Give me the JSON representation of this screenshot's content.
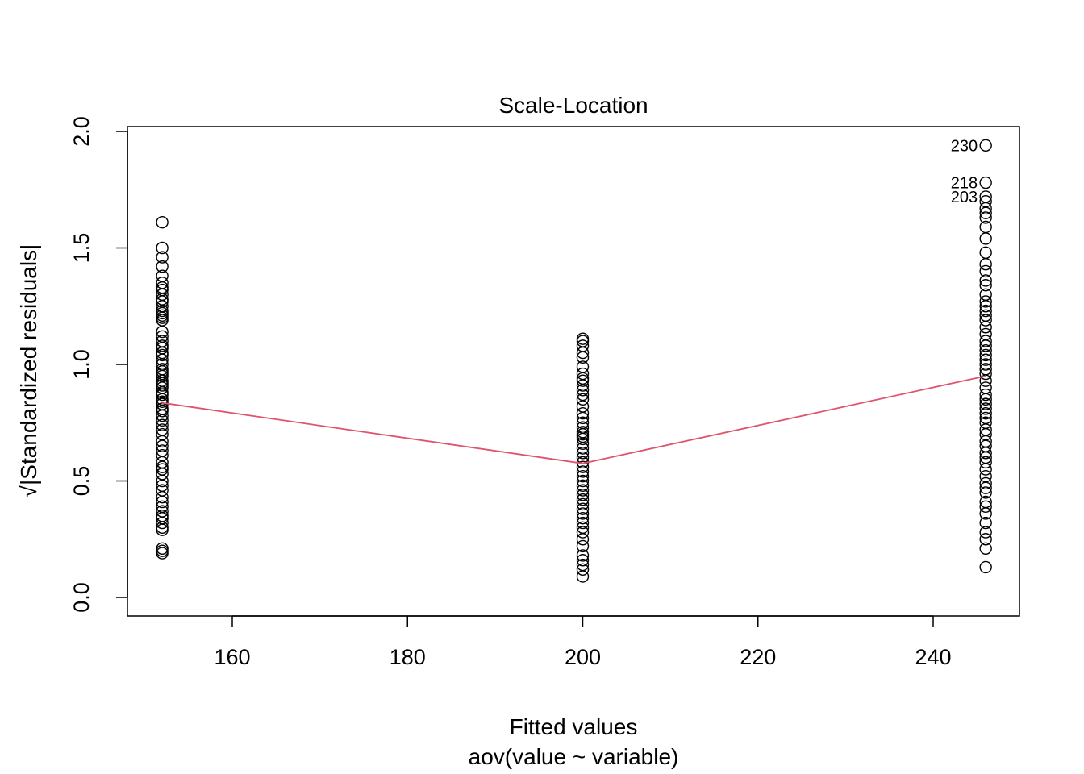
{
  "chart_data": {
    "type": "scatter",
    "title": "Scale-Location",
    "xlabel": "Fitted values",
    "xlabel_sub": "aov(value ~ variable)",
    "ylabel": "√|Standardized residuals|",
    "xlim": [
      148,
      250
    ],
    "ylim": [
      0,
      2
    ],
    "x_ticks": [
      160,
      180,
      200,
      220,
      240
    ],
    "y_ticks": [
      0.0,
      0.5,
      1.0,
      1.5,
      2.0
    ],
    "y_tick_labels": [
      "0.0",
      "0.5",
      "1.0",
      "1.5",
      "2.0"
    ],
    "grid": false,
    "groups": [
      {
        "fitted": 152,
        "values": [
          1.61,
          1.5,
          1.46,
          1.42,
          1.38,
          1.35,
          1.33,
          1.32,
          1.3,
          1.28,
          1.27,
          1.25,
          1.23,
          1.22,
          1.21,
          1.2,
          1.19,
          1.14,
          1.12,
          1.1,
          1.08,
          1.07,
          1.05,
          1.04,
          1.02,
          1.0,
          0.98,
          0.97,
          0.96,
          0.95,
          0.93,
          0.92,
          0.91,
          0.9,
          0.88,
          0.87,
          0.85,
          0.84,
          0.83,
          0.81,
          0.8,
          0.78,
          0.76,
          0.74,
          0.72,
          0.7,
          0.67,
          0.65,
          0.63,
          0.61,
          0.58,
          0.56,
          0.55,
          0.53,
          0.5,
          0.48,
          0.46,
          0.43,
          0.41,
          0.39,
          0.37,
          0.35,
          0.34,
          0.32,
          0.3,
          0.29,
          0.21,
          0.2,
          0.19
        ]
      },
      {
        "fitted": 200,
        "values": [
          1.11,
          1.1,
          1.08,
          1.05,
          1.03,
          0.99,
          0.96,
          0.94,
          0.93,
          0.91,
          0.89,
          0.87,
          0.85,
          0.82,
          0.79,
          0.77,
          0.75,
          0.73,
          0.71,
          0.7,
          0.69,
          0.68,
          0.66,
          0.64,
          0.62,
          0.6,
          0.58,
          0.56,
          0.54,
          0.52,
          0.5,
          0.48,
          0.46,
          0.44,
          0.42,
          0.4,
          0.38,
          0.36,
          0.34,
          0.32,
          0.3,
          0.28,
          0.25,
          0.22,
          0.18,
          0.16,
          0.14,
          0.12,
          0.09
        ]
      },
      {
        "fitted": 246,
        "values": [
          1.94,
          1.78,
          1.72,
          1.7,
          1.67,
          1.65,
          1.63,
          1.59,
          1.54,
          1.48,
          1.43,
          1.4,
          1.36,
          1.34,
          1.3,
          1.27,
          1.25,
          1.23,
          1.21,
          1.19,
          1.16,
          1.13,
          1.1,
          1.08,
          1.06,
          1.04,
          1.02,
          1.0,
          0.98,
          0.96,
          0.93,
          0.9,
          0.87,
          0.85,
          0.83,
          0.81,
          0.79,
          0.77,
          0.75,
          0.72,
          0.7,
          0.67,
          0.65,
          0.62,
          0.6,
          0.58,
          0.55,
          0.52,
          0.49,
          0.47,
          0.45,
          0.41,
          0.39,
          0.36,
          0.32,
          0.28,
          0.25,
          0.21,
          0.13
        ]
      }
    ],
    "smooth_line": {
      "color": "#DF536B",
      "x": [
        152,
        200,
        246
      ],
      "y": [
        0.835,
        0.575,
        0.95
      ]
    },
    "labeled_points": [
      {
        "label": "230",
        "x": 246,
        "y": 1.94
      },
      {
        "label": "218",
        "x": 246,
        "y": 1.78
      },
      {
        "label": "203",
        "x": 246,
        "y": 1.72
      }
    ]
  }
}
